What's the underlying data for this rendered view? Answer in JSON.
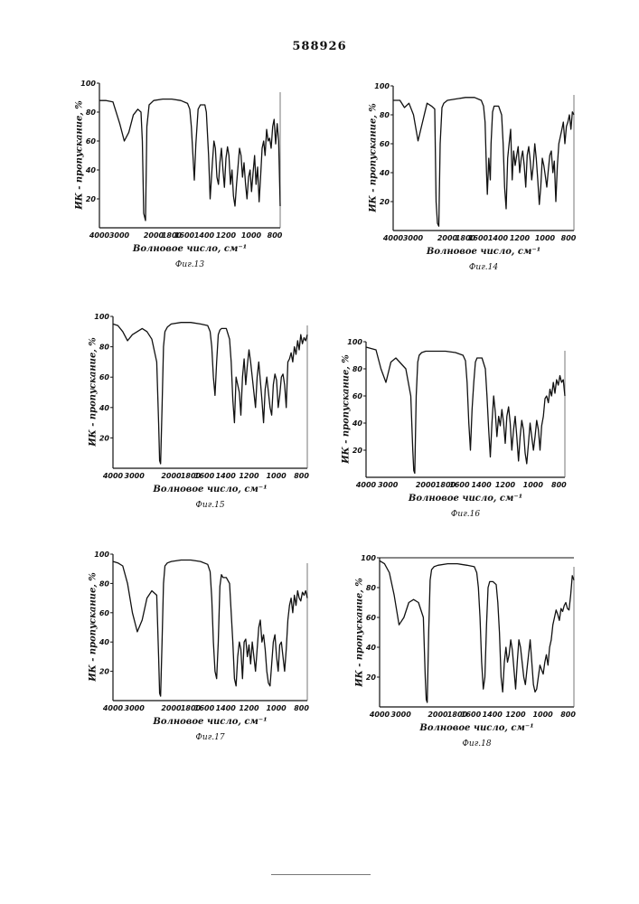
{
  "document": {
    "patent_number": "588926"
  },
  "chart_data": [
    {
      "type": "line",
      "figure": "Фиг.13",
      "xlabel": "Волновое число, см⁻¹",
      "ylabel": "ИК - пропускание, %",
      "x_ticks": [
        4000,
        3000,
        2000,
        1800,
        1600,
        1400,
        1200,
        1000,
        800
      ],
      "y_ticks": [
        20,
        40,
        60,
        80,
        100
      ],
      "xlim": [
        4000,
        800
      ],
      "ylim": [
        0,
        100
      ],
      "top_line": false,
      "series": [
        {
          "x": [
            4000,
            3850,
            3700,
            3550,
            3450,
            3350,
            3250,
            3150,
            3080,
            3050,
            3020,
            2980,
            2950,
            2900,
            2800,
            2600,
            2400,
            2200,
            2050,
            2000,
            1980,
            1960,
            1940,
            1920,
            1890,
            1860,
            1830,
            1800,
            1780,
            1750,
            1730,
            1700,
            1680,
            1660,
            1640,
            1620,
            1600,
            1580,
            1560,
            1540,
            1520,
            1500,
            1480,
            1460,
            1440,
            1420,
            1400,
            1380,
            1360,
            1340,
            1320,
            1300,
            1280,
            1260,
            1240,
            1220,
            1200,
            1180,
            1160,
            1140,
            1120,
            1100,
            1080,
            1060,
            1040,
            1020,
            1000,
            980,
            960,
            940,
            920,
            900,
            880,
            860,
            840,
            820,
            800
          ],
          "y": [
            88,
            88,
            87,
            72,
            60,
            66,
            78,
            82,
            80,
            60,
            10,
            5,
            70,
            85,
            88,
            89,
            89,
            88,
            86,
            82,
            70,
            52,
            33,
            58,
            82,
            85,
            85,
            85,
            80,
            50,
            20,
            45,
            60,
            55,
            35,
            30,
            45,
            55,
            40,
            28,
            48,
            56,
            50,
            30,
            40,
            22,
            15,
            30,
            42,
            55,
            50,
            35,
            45,
            30,
            20,
            35,
            40,
            25,
            38,
            50,
            30,
            42,
            18,
            35,
            55,
            60,
            50,
            68,
            60,
            62,
            55,
            70,
            75,
            58,
            72,
            60,
            15
          ]
        }
      ]
    },
    {
      "type": "line",
      "figure": "Фиг.14",
      "xlabel": "Волновое число, см⁻¹",
      "ylabel": "ИК - пропускание, %",
      "x_ticks": [
        4000,
        3000,
        2000,
        1800,
        1600,
        1400,
        1200,
        1000,
        800
      ],
      "y_ticks": [
        20,
        40,
        60,
        80,
        100
      ],
      "xlim": [
        4000,
        800
      ],
      "ylim": [
        0,
        100
      ],
      "top_line": false,
      "series": [
        {
          "x": [
            4000,
            3850,
            3750,
            3650,
            3550,
            3450,
            3350,
            3250,
            3150,
            3080,
            3050,
            3020,
            2990,
            2960,
            2920,
            2880,
            2800,
            2600,
            2400,
            2200,
            2050,
            2000,
            1980,
            1960,
            1950,
            1930,
            1910,
            1900,
            1880,
            1860,
            1840,
            1800,
            1760,
            1740,
            1720,
            1700,
            1680,
            1660,
            1640,
            1620,
            1600,
            1580,
            1560,
            1540,
            1520,
            1500,
            1480,
            1460,
            1440,
            1420,
            1400,
            1380,
            1360,
            1340,
            1320,
            1300,
            1280,
            1260,
            1240,
            1220,
            1200,
            1180,
            1160,
            1140,
            1120,
            1100,
            1080,
            1060,
            1040,
            1020,
            1000,
            980,
            960,
            940,
            920,
            900,
            880,
            860,
            840,
            820,
            800
          ],
          "y": [
            90,
            90,
            85,
            88,
            80,
            62,
            75,
            88,
            86,
            84,
            20,
            5,
            3,
            60,
            85,
            88,
            90,
            91,
            92,
            92,
            90,
            86,
            75,
            40,
            25,
            50,
            35,
            60,
            82,
            86,
            86,
            86,
            80,
            60,
            30,
            15,
            50,
            60,
            70,
            35,
            55,
            45,
            52,
            58,
            40,
            50,
            55,
            45,
            30,
            52,
            58,
            48,
            35,
            45,
            60,
            50,
            35,
            18,
            30,
            50,
            45,
            38,
            30,
            42,
            52,
            55,
            40,
            48,
            20,
            45,
            60,
            65,
            70,
            75,
            60,
            72,
            75,
            80,
            70,
            82,
            80
          ]
        }
      ]
    },
    {
      "type": "line",
      "figure": "Фиг.15",
      "xlabel": "Волновое число, см⁻¹",
      "ylabel": "ИК - пропускание, %",
      "x_ticks": [
        4000,
        3000,
        2000,
        1800,
        1600,
        1400,
        1200,
        1000,
        800
      ],
      "y_ticks": [
        20,
        40,
        60,
        80,
        100
      ],
      "xlim": [
        4000,
        800
      ],
      "ylim": [
        0,
        100
      ],
      "top_line": false,
      "series": [
        {
          "x": [
            4000,
            3900,
            3800,
            3700,
            3600,
            3500,
            3400,
            3300,
            3200,
            3100,
            3060,
            3040,
            3020,
            2990,
            2960,
            2930,
            2880,
            2800,
            2600,
            2400,
            2200,
            2050,
            2000,
            1980,
            1960,
            1940,
            1920,
            1900,
            1880,
            1860,
            1800,
            1760,
            1740,
            1720,
            1700,
            1680,
            1660,
            1640,
            1620,
            1600,
            1580,
            1560,
            1540,
            1520,
            1500,
            1480,
            1460,
            1440,
            1420,
            1400,
            1380,
            1360,
            1340,
            1320,
            1300,
            1280,
            1260,
            1240,
            1220,
            1200,
            1180,
            1160,
            1140,
            1120,
            1100,
            1080,
            1060,
            1040,
            1020,
            1000,
            980,
            960,
            940,
            920,
            900,
            880,
            860,
            840,
            820,
            800
          ],
          "y": [
            95,
            94,
            90,
            84,
            88,
            90,
            92,
            90,
            85,
            70,
            30,
            5,
            3,
            40,
            80,
            90,
            93,
            95,
            96,
            96,
            95,
            94,
            90,
            80,
            60,
            48,
            70,
            88,
            91,
            92,
            92,
            85,
            70,
            45,
            30,
            60,
            55,
            50,
            35,
            60,
            72,
            55,
            68,
            78,
            70,
            60,
            50,
            40,
            60,
            70,
            58,
            45,
            30,
            52,
            60,
            50,
            40,
            35,
            55,
            62,
            58,
            40,
            48,
            60,
            62,
            55,
            40,
            70,
            72,
            76,
            70,
            80,
            75,
            84,
            78,
            88,
            82,
            86,
            84,
            88
          ]
        }
      ]
    },
    {
      "type": "line",
      "figure": "Фиг.16",
      "xlabel": "Волновое число, см⁻¹",
      "ylabel": "ИК - пропускание, %",
      "x_ticks": [
        4000,
        3000,
        2000,
        1800,
        1600,
        1400,
        1200,
        1000,
        800
      ],
      "y_ticks": [
        20,
        40,
        60,
        80,
        100
      ],
      "xlim": [
        4000,
        800
      ],
      "ylim": [
        0,
        100
      ],
      "top_line": false,
      "series": [
        {
          "x": [
            4000,
            3900,
            3800,
            3700,
            3600,
            3500,
            3400,
            3300,
            3200,
            3100,
            3060,
            3040,
            3020,
            2990,
            2960,
            2930,
            2880,
            2800,
            2600,
            2400,
            2200,
            2050,
            2000,
            1980,
            1960,
            1940,
            1920,
            1900,
            1880,
            1860,
            1840,
            1800,
            1760,
            1740,
            1720,
            1700,
            1680,
            1660,
            1640,
            1620,
            1600,
            1580,
            1560,
            1540,
            1520,
            1500,
            1480,
            1460,
            1440,
            1420,
            1400,
            1380,
            1360,
            1340,
            1320,
            1300,
            1280,
            1260,
            1240,
            1220,
            1200,
            1180,
            1160,
            1140,
            1120,
            1100,
            1080,
            1060,
            1040,
            1020,
            1000,
            980,
            960,
            940,
            920,
            900,
            880,
            860,
            840,
            820,
            800
          ],
          "y": [
            96,
            95,
            94,
            80,
            70,
            85,
            88,
            84,
            80,
            60,
            20,
            5,
            3,
            60,
            85,
            90,
            92,
            93,
            93,
            93,
            92,
            90,
            86,
            70,
            40,
            20,
            50,
            70,
            85,
            88,
            88,
            88,
            80,
            60,
            35,
            15,
            40,
            60,
            48,
            30,
            45,
            38,
            50,
            40,
            25,
            45,
            52,
            40,
            20,
            35,
            45,
            30,
            12,
            30,
            42,
            35,
            18,
            10,
            25,
            40,
            30,
            20,
            30,
            42,
            35,
            20,
            38,
            45,
            58,
            60,
            55,
            65,
            60,
            70,
            62,
            72,
            68,
            75,
            70,
            72,
            60
          ]
        }
      ]
    },
    {
      "type": "line",
      "figure": "Фиг.17",
      "xlabel": "Волновое число, см⁻¹",
      "ylabel": "ИК - пропускание, %",
      "x_ticks": [
        4000,
        3000,
        2000,
        1800,
        1600,
        1400,
        1200,
        1000,
        800
      ],
      "y_ticks": [
        20,
        40,
        60,
        80,
        100
      ],
      "xlim": [
        4000,
        800
      ],
      "ylim": [
        0,
        100
      ],
      "top_line": false,
      "series": [
        {
          "x": [
            4000,
            3900,
            3800,
            3700,
            3600,
            3500,
            3400,
            3300,
            3200,
            3100,
            3060,
            3040,
            3020,
            2990,
            2960,
            2930,
            2880,
            2800,
            2600,
            2400,
            2200,
            2050,
            2000,
            1980,
            1960,
            1940,
            1920,
            1900,
            1880,
            1860,
            1840,
            1800,
            1760,
            1740,
            1720,
            1700,
            1680,
            1660,
            1640,
            1620,
            1600,
            1580,
            1560,
            1540,
            1520,
            1500,
            1480,
            1460,
            1440,
            1420,
            1400,
            1380,
            1360,
            1340,
            1320,
            1300,
            1280,
            1260,
            1240,
            1220,
            1200,
            1180,
            1160,
            1140,
            1120,
            1100,
            1080,
            1060,
            1040,
            1020,
            1000,
            980,
            960,
            940,
            920,
            900,
            880,
            860,
            840,
            820,
            800
          ],
          "y": [
            95,
            94,
            92,
            80,
            60,
            47,
            55,
            70,
            75,
            72,
            30,
            5,
            3,
            40,
            80,
            92,
            94,
            95,
            96,
            96,
            95,
            93,
            88,
            70,
            40,
            20,
            15,
            40,
            78,
            86,
            84,
            84,
            80,
            60,
            40,
            15,
            10,
            30,
            40,
            35,
            15,
            40,
            42,
            30,
            38,
            25,
            40,
            30,
            20,
            35,
            50,
            55,
            40,
            45,
            35,
            20,
            12,
            10,
            25,
            40,
            45,
            30,
            20,
            38,
            40,
            30,
            20,
            35,
            55,
            65,
            70,
            60,
            72,
            65,
            75,
            70,
            68,
            74,
            72,
            75,
            70
          ]
        }
      ]
    },
    {
      "type": "line",
      "figure": "Фиг.18",
      "xlabel": "Волновое число, см⁻¹",
      "ylabel": "ИК - пропускание, %",
      "x_ticks": [
        4000,
        3000,
        2000,
        1800,
        1600,
        1400,
        1200,
        1000,
        800
      ],
      "y_ticks": [
        20,
        40,
        60,
        80,
        100
      ],
      "xlim": [
        4000,
        800
      ],
      "ylim": [
        0,
        100
      ],
      "top_line": true,
      "series": [
        {
          "x": [
            4000,
            3900,
            3800,
            3700,
            3600,
            3500,
            3400,
            3300,
            3200,
            3100,
            3060,
            3040,
            3020,
            2990,
            2960,
            2930,
            2880,
            2800,
            2600,
            2400,
            2200,
            2050,
            2000,
            1980,
            1960,
            1940,
            1920,
            1900,
            1880,
            1860,
            1840,
            1800,
            1760,
            1740,
            1720,
            1700,
            1680,
            1660,
            1640,
            1620,
            1600,
            1580,
            1560,
            1540,
            1520,
            1500,
            1480,
            1460,
            1440,
            1420,
            1400,
            1380,
            1360,
            1340,
            1320,
            1300,
            1280,
            1260,
            1240,
            1220,
            1200,
            1180,
            1160,
            1140,
            1120,
            1100,
            1080,
            1060,
            1040,
            1020,
            1000,
            980,
            960,
            940,
            920,
            900,
            880,
            860,
            840,
            820,
            800
          ],
          "y": [
            98,
            96,
            90,
            75,
            55,
            60,
            70,
            72,
            70,
            60,
            20,
            5,
            3,
            50,
            85,
            92,
            94,
            95,
            96,
            96,
            95,
            94,
            90,
            80,
            60,
            30,
            12,
            20,
            55,
            80,
            84,
            84,
            82,
            70,
            50,
            20,
            10,
            30,
            40,
            30,
            35,
            45,
            38,
            25,
            12,
            30,
            45,
            40,
            30,
            20,
            15,
            25,
            35,
            45,
            30,
            15,
            10,
            12,
            20,
            28,
            25,
            22,
            30,
            35,
            28,
            40,
            45,
            55,
            60,
            65,
            62,
            58,
            66,
            64,
            68,
            70,
            66,
            65,
            75,
            88,
            85
          ]
        }
      ]
    }
  ]
}
